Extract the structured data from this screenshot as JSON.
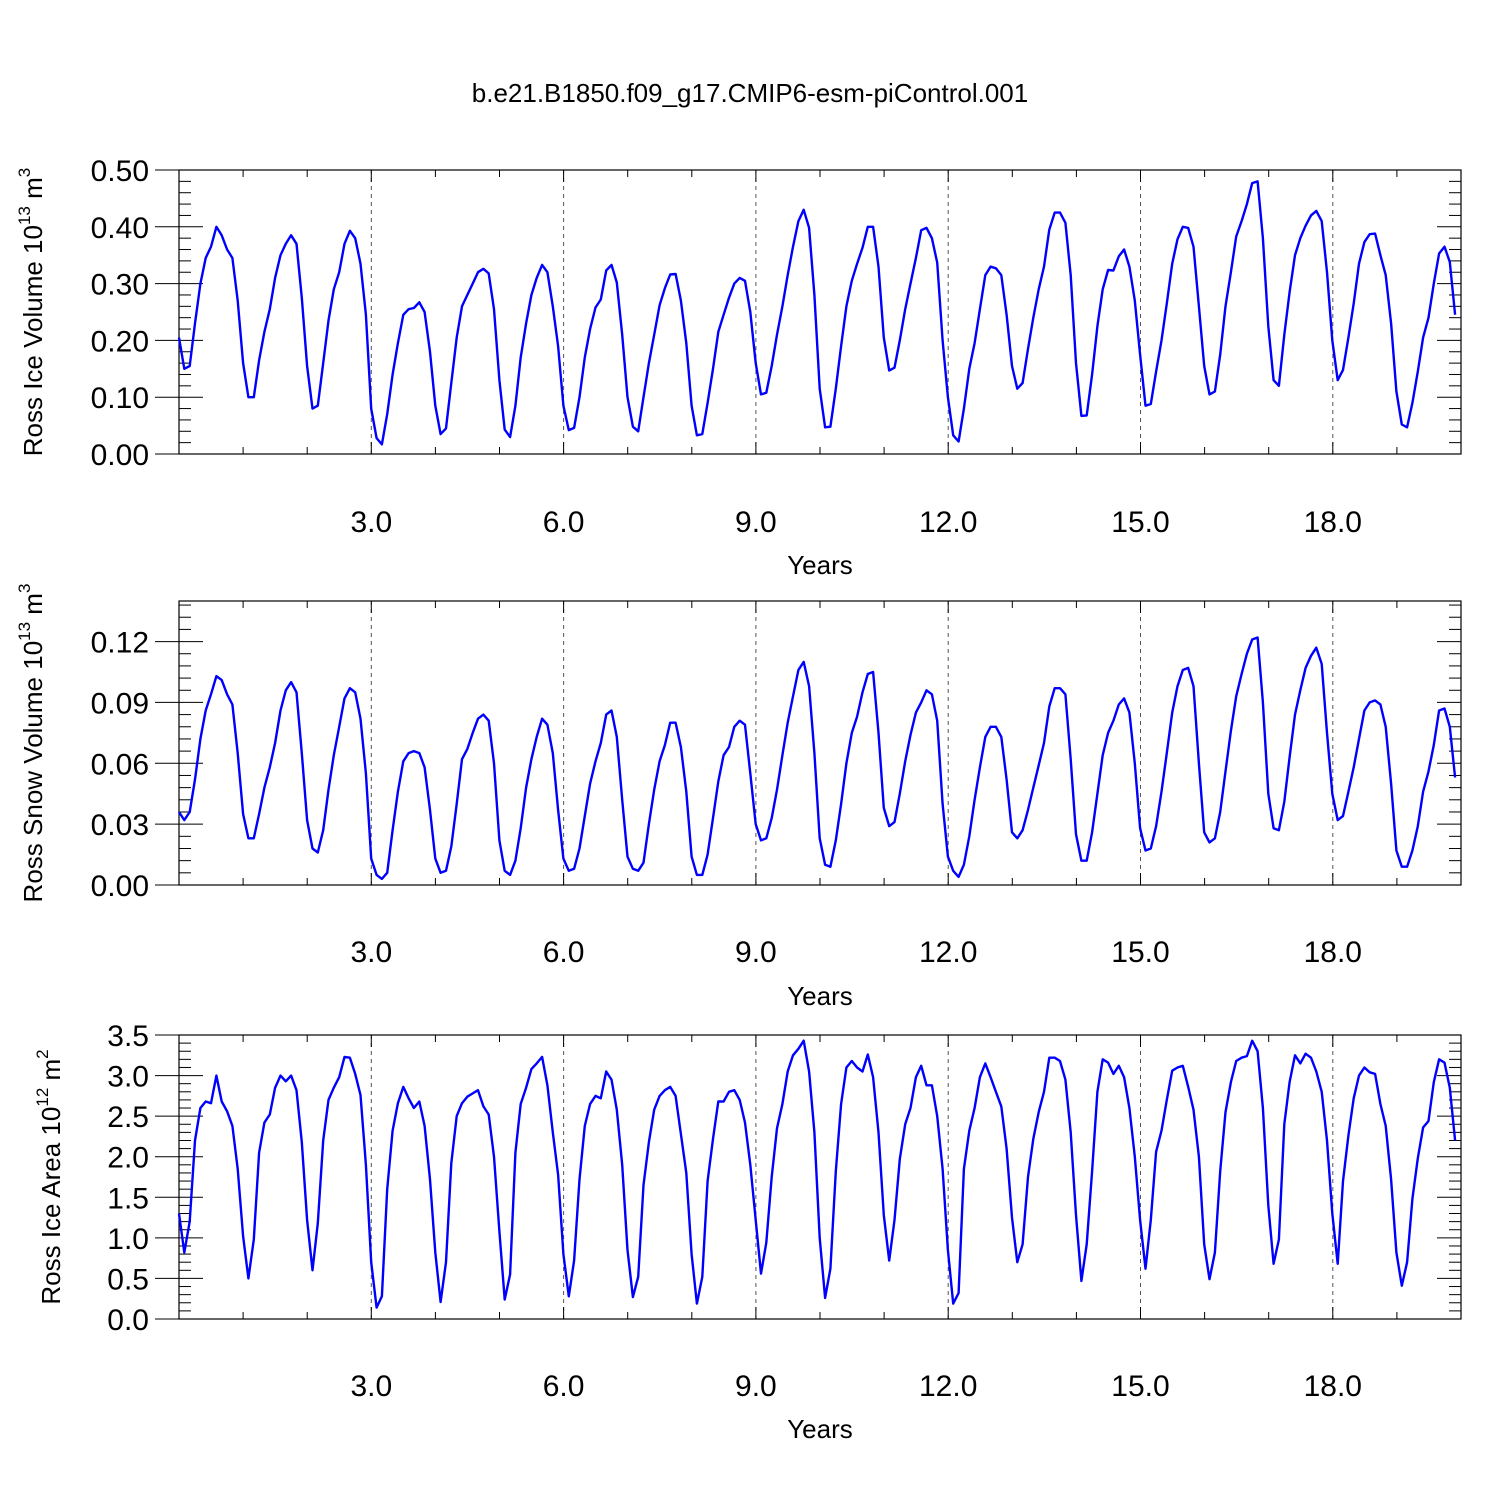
{
  "title": "b.e21.B1850.f09_g17.CMIP6-esm-piControl.001",
  "chart_data": [
    {
      "type": "line",
      "ylabel_base": "Ross Ice Volume 10",
      "ylabel_exp": "13",
      "ylabel_unit": " m",
      "ylabel_unit_exp": "3",
      "xlabel": "Years",
      "xlim": [
        0.0,
        20.0
      ],
      "ylim": [
        0.0,
        0.5
      ],
      "xticks": [
        3.0,
        6.0,
        9.0,
        12.0,
        15.0,
        18.0
      ],
      "xtick_labels": [
        "3.0",
        "6.0",
        "9.0",
        "12.0",
        "15.0",
        "18.0"
      ],
      "yticks": [
        0.0,
        0.1,
        0.2,
        0.3,
        0.4,
        0.5
      ],
      "ytick_labels": [
        "0.00",
        "0.10",
        "0.20",
        "0.30",
        "0.40",
        "0.50"
      ],
      "grid": "dashed vertical at x ticks",
      "color": "#0000ff",
      "x_step": 0.0833,
      "values": [
        0.205,
        0.15,
        0.155,
        0.23,
        0.3,
        0.345,
        0.365,
        0.4,
        0.385,
        0.36,
        0.345,
        0.27,
        0.16,
        0.1,
        0.1,
        0.165,
        0.215,
        0.255,
        0.31,
        0.35,
        0.37,
        0.385,
        0.37,
        0.275,
        0.155,
        0.08,
        0.085,
        0.16,
        0.235,
        0.29,
        0.32,
        0.37,
        0.393,
        0.38,
        0.335,
        0.245,
        0.08,
        0.028,
        0.017,
        0.07,
        0.14,
        0.195,
        0.245,
        0.255,
        0.257,
        0.267,
        0.25,
        0.18,
        0.085,
        0.035,
        0.045,
        0.125,
        0.205,
        0.26,
        0.28,
        0.3,
        0.32,
        0.326,
        0.318,
        0.255,
        0.13,
        0.043,
        0.03,
        0.085,
        0.17,
        0.23,
        0.28,
        0.31,
        0.333,
        0.32,
        0.26,
        0.19,
        0.085,
        0.042,
        0.046,
        0.1,
        0.17,
        0.22,
        0.258,
        0.272,
        0.323,
        0.333,
        0.302,
        0.21,
        0.1,
        0.048,
        0.04,
        0.1,
        0.16,
        0.21,
        0.262,
        0.292,
        0.316,
        0.317,
        0.27,
        0.195,
        0.085,
        0.033,
        0.035,
        0.09,
        0.15,
        0.215,
        0.245,
        0.275,
        0.3,
        0.31,
        0.305,
        0.25,
        0.16,
        0.105,
        0.108,
        0.155,
        0.21,
        0.26,
        0.315,
        0.365,
        0.41,
        0.43,
        0.398,
        0.28,
        0.115,
        0.047,
        0.048,
        0.115,
        0.19,
        0.26,
        0.305,
        0.335,
        0.363,
        0.4,
        0.4,
        0.33,
        0.205,
        0.147,
        0.152,
        0.2,
        0.255,
        0.3,
        0.345,
        0.394,
        0.398,
        0.38,
        0.337,
        0.2,
        0.1,
        0.033,
        0.022,
        0.08,
        0.15,
        0.195,
        0.255,
        0.315,
        0.33,
        0.327,
        0.315,
        0.245,
        0.155,
        0.115,
        0.125,
        0.185,
        0.24,
        0.29,
        0.33,
        0.395,
        0.425,
        0.425,
        0.407,
        0.315,
        0.16,
        0.067,
        0.068,
        0.14,
        0.225,
        0.29,
        0.324,
        0.323,
        0.348,
        0.36,
        0.33,
        0.27,
        0.175,
        0.085,
        0.088,
        0.145,
        0.2,
        0.265,
        0.335,
        0.378,
        0.4,
        0.398,
        0.365,
        0.26,
        0.155,
        0.105,
        0.11,
        0.175,
        0.26,
        0.32,
        0.383,
        0.41,
        0.44,
        0.477,
        0.48,
        0.38,
        0.225,
        0.13,
        0.12,
        0.21,
        0.285,
        0.35,
        0.38,
        0.402,
        0.42,
        0.428,
        0.41,
        0.32,
        0.2,
        0.13,
        0.148,
        0.205,
        0.265,
        0.335,
        0.373,
        0.387,
        0.388,
        0.35,
        0.315,
        0.23,
        0.11,
        0.052,
        0.047,
        0.09,
        0.145,
        0.205,
        0.24,
        0.3,
        0.353,
        0.365,
        0.338,
        0.245
      ]
    },
    {
      "type": "line",
      "ylabel_base": "Ross Snow Volume 10",
      "ylabel_exp": "13",
      "ylabel_unit": " m",
      "ylabel_unit_exp": "3",
      "xlabel": "Years",
      "xlim": [
        0.0,
        20.0
      ],
      "ylim": [
        0.0,
        0.14
      ],
      "xticks": [
        3.0,
        6.0,
        9.0,
        12.0,
        15.0,
        18.0
      ],
      "xtick_labels": [
        "3.0",
        "6.0",
        "9.0",
        "12.0",
        "15.0",
        "18.0"
      ],
      "yticks": [
        0.0,
        0.03,
        0.06,
        0.09,
        0.12
      ],
      "ytick_labels": [
        "0.00",
        "0.03",
        "0.06",
        "0.09",
        "0.12"
      ],
      "grid": "dashed vertical at x ticks",
      "color": "#0000ff",
      "x_step": 0.0833,
      "values": [
        0.036,
        0.032,
        0.036,
        0.052,
        0.072,
        0.086,
        0.094,
        0.103,
        0.101,
        0.094,
        0.089,
        0.065,
        0.035,
        0.023,
        0.023,
        0.035,
        0.048,
        0.058,
        0.07,
        0.086,
        0.096,
        0.1,
        0.095,
        0.065,
        0.032,
        0.018,
        0.016,
        0.027,
        0.047,
        0.064,
        0.078,
        0.092,
        0.097,
        0.095,
        0.082,
        0.055,
        0.013,
        0.005,
        0.003,
        0.006,
        0.027,
        0.046,
        0.061,
        0.065,
        0.066,
        0.065,
        0.058,
        0.037,
        0.013,
        0.006,
        0.007,
        0.019,
        0.04,
        0.062,
        0.067,
        0.075,
        0.082,
        0.084,
        0.081,
        0.06,
        0.022,
        0.007,
        0.005,
        0.012,
        0.028,
        0.048,
        0.062,
        0.073,
        0.082,
        0.079,
        0.065,
        0.037,
        0.013,
        0.007,
        0.008,
        0.018,
        0.034,
        0.05,
        0.061,
        0.07,
        0.084,
        0.086,
        0.073,
        0.042,
        0.014,
        0.008,
        0.007,
        0.011,
        0.03,
        0.047,
        0.061,
        0.069,
        0.08,
        0.08,
        0.068,
        0.046,
        0.014,
        0.005,
        0.005,
        0.015,
        0.033,
        0.051,
        0.064,
        0.068,
        0.078,
        0.081,
        0.079,
        0.055,
        0.03,
        0.022,
        0.023,
        0.033,
        0.047,
        0.064,
        0.08,
        0.093,
        0.106,
        0.11,
        0.098,
        0.065,
        0.023,
        0.01,
        0.009,
        0.022,
        0.04,
        0.06,
        0.075,
        0.083,
        0.095,
        0.104,
        0.105,
        0.075,
        0.038,
        0.029,
        0.031,
        0.045,
        0.061,
        0.074,
        0.085,
        0.09,
        0.096,
        0.094,
        0.081,
        0.04,
        0.014,
        0.007,
        0.004,
        0.01,
        0.024,
        0.042,
        0.058,
        0.073,
        0.078,
        0.078,
        0.073,
        0.052,
        0.026,
        0.023,
        0.027,
        0.037,
        0.048,
        0.059,
        0.07,
        0.088,
        0.097,
        0.097,
        0.094,
        0.062,
        0.025,
        0.012,
        0.012,
        0.026,
        0.045,
        0.064,
        0.075,
        0.081,
        0.089,
        0.092,
        0.085,
        0.06,
        0.028,
        0.017,
        0.018,
        0.029,
        0.046,
        0.065,
        0.085,
        0.098,
        0.106,
        0.107,
        0.098,
        0.06,
        0.026,
        0.021,
        0.023,
        0.036,
        0.056,
        0.076,
        0.093,
        0.104,
        0.114,
        0.121,
        0.122,
        0.09,
        0.045,
        0.028,
        0.027,
        0.041,
        0.063,
        0.084,
        0.096,
        0.107,
        0.113,
        0.117,
        0.109,
        0.075,
        0.045,
        0.032,
        0.034,
        0.046,
        0.058,
        0.072,
        0.086,
        0.09,
        0.091,
        0.089,
        0.078,
        0.05,
        0.017,
        0.009,
        0.009,
        0.017,
        0.029,
        0.046,
        0.056,
        0.069,
        0.086,
        0.087,
        0.078,
        0.053
      ]
    },
    {
      "type": "line",
      "ylabel_base": "Ross Ice Area 10",
      "ylabel_exp": "12",
      "ylabel_unit": " m",
      "ylabel_unit_exp": "2",
      "xlabel": "Years",
      "xlim": [
        0.0,
        20.0
      ],
      "ylim": [
        0.0,
        3.5
      ],
      "xticks": [
        3.0,
        6.0,
        9.0,
        12.0,
        15.0,
        18.0
      ],
      "xtick_labels": [
        "3.0",
        "6.0",
        "9.0",
        "12.0",
        "15.0",
        "18.0"
      ],
      "yticks": [
        0.0,
        0.5,
        1.0,
        1.5,
        2.0,
        2.5,
        3.0,
        3.5
      ],
      "ytick_labels": [
        "0.0",
        "0.5",
        "1.0",
        "1.5",
        "2.0",
        "2.5",
        "3.0",
        "3.5"
      ],
      "grid": "dashed vertical at x ticks",
      "color": "#0000ff",
      "x_step": 0.0833,
      "values": [
        1.3,
        0.82,
        1.2,
        2.2,
        2.6,
        2.68,
        2.66,
        3.0,
        2.68,
        2.56,
        2.38,
        1.85,
        1.02,
        0.5,
        0.98,
        2.05,
        2.42,
        2.52,
        2.85,
        3.0,
        2.93,
        3.0,
        2.82,
        2.18,
        1.22,
        0.6,
        1.18,
        2.2,
        2.7,
        2.85,
        2.98,
        3.23,
        3.22,
        3.02,
        2.76,
        1.9,
        0.7,
        0.14,
        0.28,
        1.6,
        2.32,
        2.66,
        2.86,
        2.72,
        2.6,
        2.68,
        2.38,
        1.72,
        0.82,
        0.21,
        0.7,
        1.92,
        2.5,
        2.66,
        2.74,
        2.78,
        2.82,
        2.62,
        2.52,
        2.0,
        1.08,
        0.24,
        0.55,
        2.05,
        2.65,
        2.85,
        3.08,
        3.15,
        3.23,
        2.88,
        2.3,
        1.78,
        0.8,
        0.28,
        0.72,
        1.72,
        2.38,
        2.65,
        2.75,
        2.72,
        3.05,
        2.95,
        2.58,
        1.9,
        0.85,
        0.27,
        0.52,
        1.65,
        2.18,
        2.58,
        2.75,
        2.82,
        2.86,
        2.75,
        2.28,
        1.8,
        0.8,
        0.19,
        0.52,
        1.7,
        2.22,
        2.68,
        2.68,
        2.8,
        2.82,
        2.7,
        2.42,
        1.9,
        1.22,
        0.56,
        0.94,
        1.75,
        2.35,
        2.65,
        3.05,
        3.25,
        3.33,
        3.43,
        3.05,
        2.3,
        1.0,
        0.26,
        0.62,
        1.82,
        2.65,
        3.1,
        3.18,
        3.1,
        3.05,
        3.26,
        2.98,
        2.3,
        1.28,
        0.72,
        1.22,
        1.97,
        2.4,
        2.6,
        2.98,
        3.12,
        2.88,
        2.88,
        2.5,
        1.85,
        0.85,
        0.19,
        0.32,
        1.85,
        2.32,
        2.6,
        2.98,
        3.15,
        2.98,
        2.8,
        2.62,
        2.1,
        1.25,
        0.7,
        0.92,
        1.75,
        2.22,
        2.55,
        2.8,
        3.22,
        3.22,
        3.18,
        2.95,
        2.3,
        1.28,
        0.47,
        0.92,
        1.82,
        2.8,
        3.2,
        3.16,
        3.02,
        3.12,
        2.98,
        2.6,
        2.0,
        1.22,
        0.62,
        1.22,
        2.06,
        2.32,
        2.7,
        3.06,
        3.1,
        3.12,
        2.86,
        2.58,
        2.0,
        0.92,
        0.49,
        0.82,
        1.82,
        2.55,
        2.92,
        3.18,
        3.22,
        3.24,
        3.43,
        3.3,
        2.6,
        1.4,
        0.68,
        0.98,
        2.4,
        2.92,
        3.25,
        3.15,
        3.27,
        3.22,
        3.05,
        2.8,
        2.2,
        1.3,
        0.68,
        1.7,
        2.26,
        2.72,
        3.0,
        3.1,
        3.04,
        3.02,
        2.65,
        2.38,
        1.72,
        0.82,
        0.41,
        0.7,
        1.48,
        1.98,
        2.36,
        2.44,
        2.92,
        3.2,
        3.16,
        2.85,
        2.2
      ]
    }
  ]
}
